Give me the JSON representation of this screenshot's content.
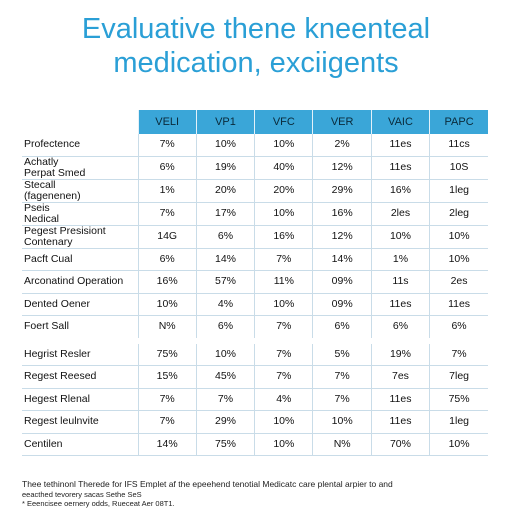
{
  "title_line1": "Evaluative thene kneenteal",
  "title_line2": "medication, exciigents",
  "columns": [
    "VELI",
    "VP1",
    "VFC",
    "VER",
    "VAIC",
    "PAPC"
  ],
  "rows": [
    {
      "label": "Profectence",
      "values": [
        "7%",
        "10%",
        "10%",
        "2%",
        "11es",
        "11cs"
      ]
    },
    {
      "label": "Achatly\nPerpat Smed",
      "values": [
        "6%",
        "19%",
        "40%",
        "12%",
        "11es",
        "10S"
      ]
    },
    {
      "label": "Stecall\n(fagenenen)",
      "values": [
        "1%",
        "20%",
        "20%",
        "29%",
        "16%",
        "1leg"
      ]
    },
    {
      "label": "Pseis\nNedical",
      "values": [
        "7%",
        "17%",
        "10%",
        "16%",
        "2les",
        "2leg"
      ]
    },
    {
      "label": "Pegest Presisiont\nContenary",
      "values": [
        "14G",
        "6%",
        "16%",
        "12%",
        "10%",
        "10%"
      ]
    },
    {
      "label": "Pacft Cual",
      "values": [
        "6%",
        "14%",
        "7%",
        "14%",
        "1%",
        "10%"
      ]
    },
    {
      "label": "Arconatind Operation",
      "values": [
        "16%",
        "57%",
        "11%",
        "09%",
        "11s",
        "2es"
      ]
    },
    {
      "label": "Dented Oener",
      "values": [
        "10%",
        "4%",
        "10%",
        "09%",
        "11es",
        "11es"
      ]
    },
    {
      "label": "Foert Sall",
      "values": [
        "N%",
        "6%",
        "7%",
        "6%",
        "6%",
        "6%"
      ]
    },
    {
      "label": "Hegrist Resler",
      "values": [
        "75%",
        "10%",
        "7%",
        "5%",
        "19%",
        "7%"
      ]
    },
    {
      "label": "Regest Reesed",
      "values": [
        "15%",
        "45%",
        "7%",
        "7%",
        "7es",
        "7leg"
      ]
    },
    {
      "label": "Hegest Rlenal",
      "values": [
        "7%",
        "7%",
        "4%",
        "7%",
        "11es",
        "75%"
      ]
    },
    {
      "label": "Regest leulnvite",
      "values": [
        "7%",
        "29%",
        "10%",
        "10%",
        "11es",
        "1leg"
      ]
    },
    {
      "label": "Centilen",
      "values": [
        "14%",
        "75%",
        "10%",
        "N%",
        "70%",
        "10%"
      ]
    }
  ],
  "footnote_line1": "Thee tethinonl Therede for IFS Emplet af the epeehend tenotial Medicatc care plental arpier to and",
  "footnote_line2": "eeacthed tevorery sacas Sethe SeS",
  "footnote_line3": "* Eeencisee oernery odds, Rueceat Aer 08T1."
}
